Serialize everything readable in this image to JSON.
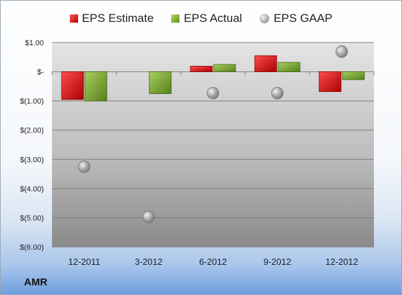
{
  "ticker": "AMR",
  "chart_data": {
    "type": "bar",
    "categories": [
      "12-2011",
      "3-2012",
      "6-2012",
      "9-2012",
      "12-2012"
    ],
    "series": [
      {
        "name": "EPS Estimate",
        "values": [
          -0.95,
          null,
          0.19,
          0.55,
          -0.68
        ]
      },
      {
        "name": "EPS Actual",
        "values": [
          -1.0,
          -0.75,
          0.25,
          0.32,
          -0.27
        ]
      },
      {
        "name": "EPS GAAP",
        "values": [
          -3.25,
          -4.97,
          -0.73,
          -0.73,
          0.69
        ],
        "style": "markers"
      }
    ],
    "yticks": [
      1.0,
      0,
      -1.0,
      -2.0,
      -3.0,
      -4.0,
      -5.0,
      -6.0
    ],
    "ytick_labels": [
      "$1.00",
      "$-",
      "$(1.00)",
      "$(2.00)",
      "$(3.00)",
      "$(4.00)",
      "$(5.00)",
      "$(6.00)"
    ],
    "ylim": [
      -6.0,
      1.0
    ],
    "legend_position": "top",
    "grid": true,
    "colors": {
      "estimate": "#c8161d",
      "actual": "#7fae3a",
      "gaap": "#a6a6a6"
    }
  }
}
